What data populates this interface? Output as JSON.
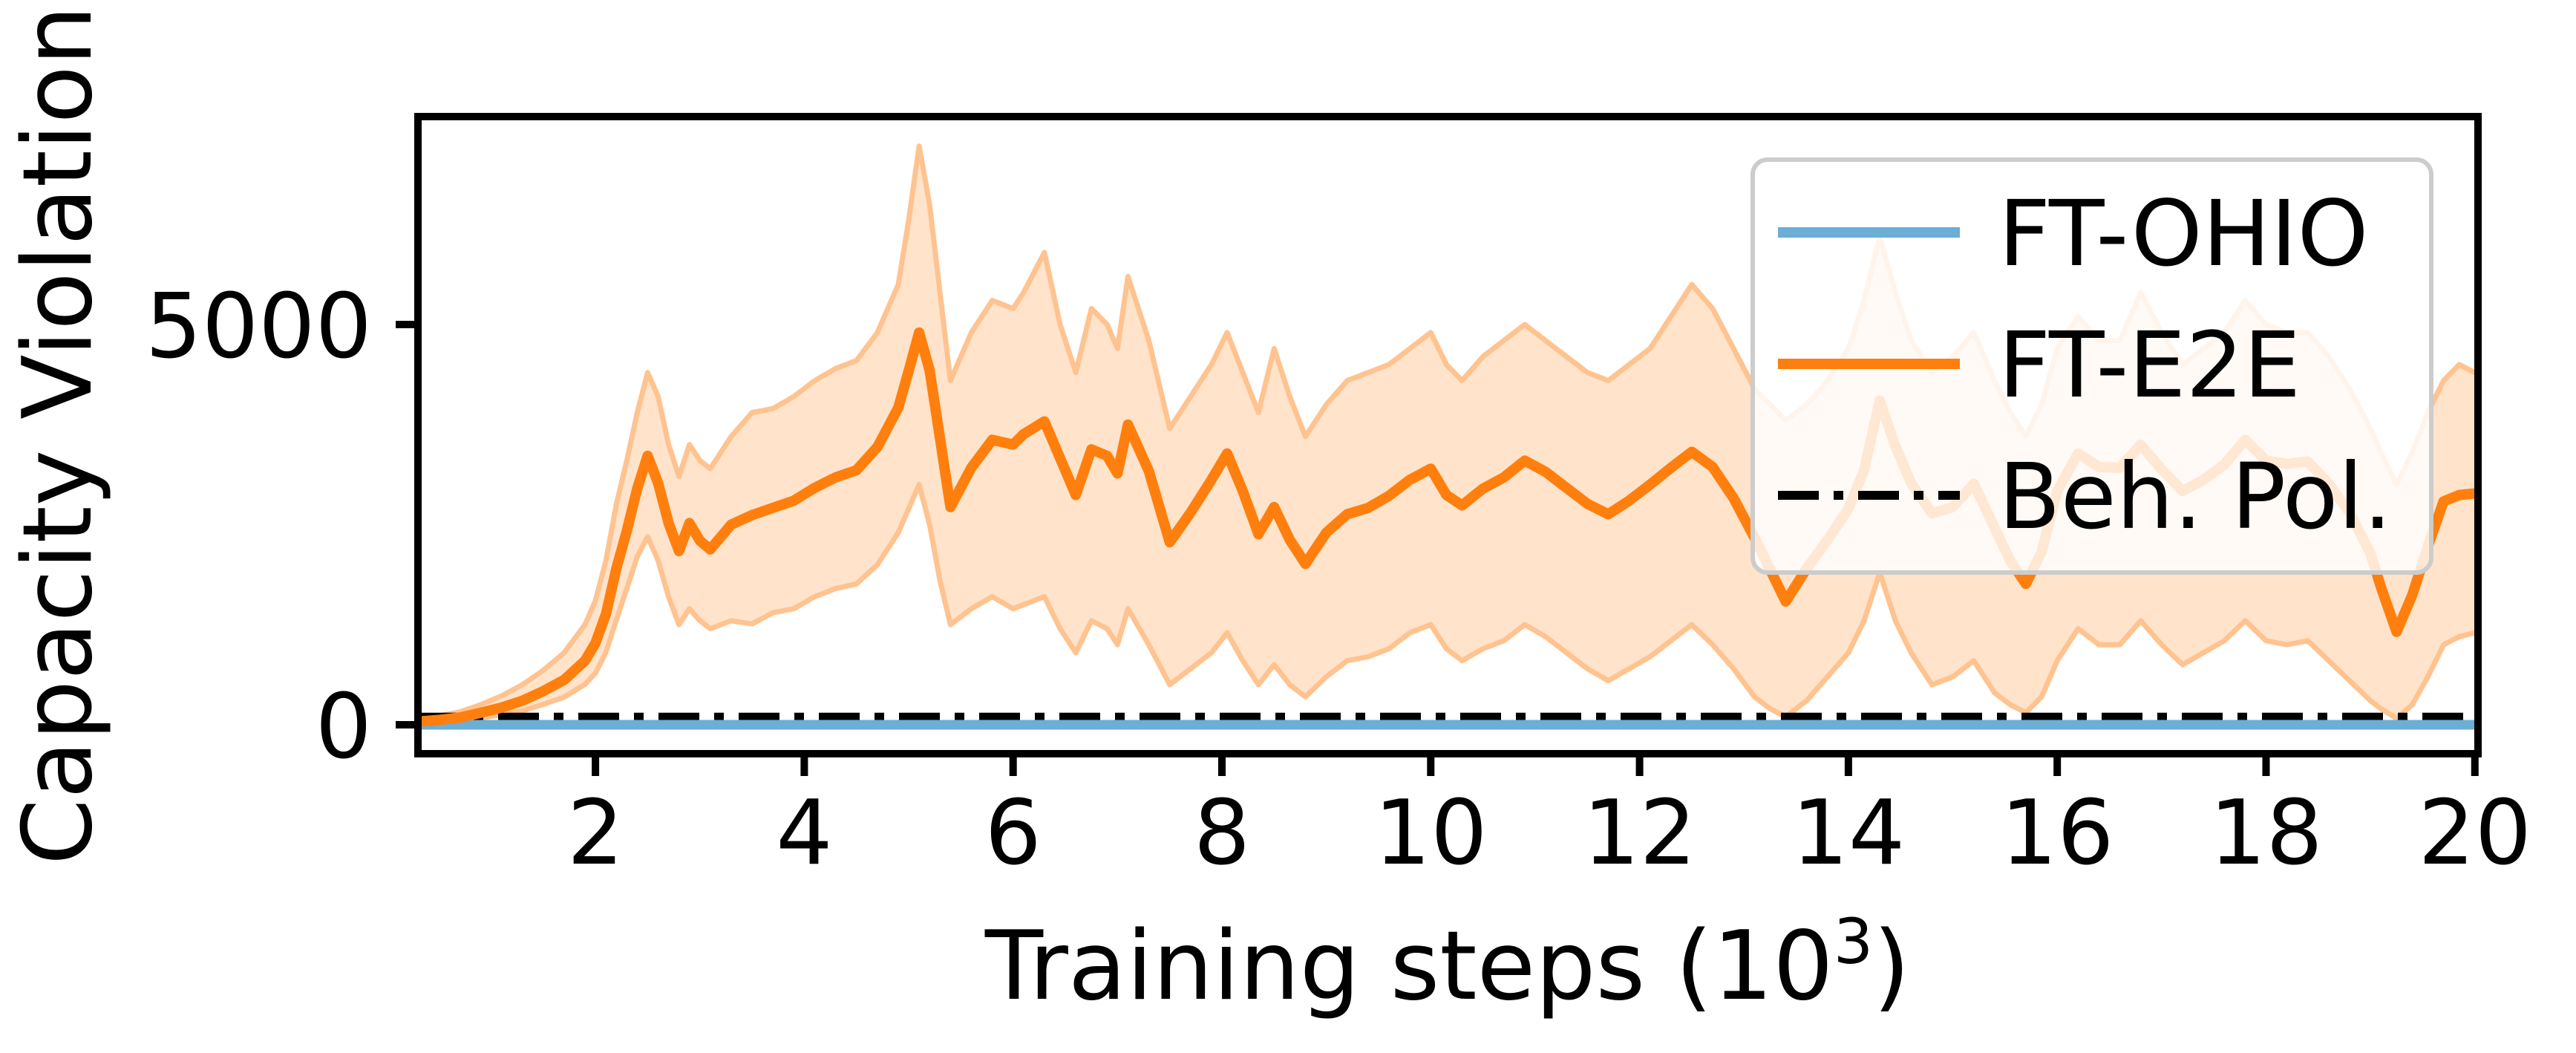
{
  "figure": {
    "background": "#ffffff"
  },
  "colors": {
    "ft_ohio": "#6BAED6",
    "ft_e2e": "#FF7F0E",
    "beh_pol": "#000000",
    "band_fill": "#FF7F0E",
    "band_edge": "#FFC390",
    "legend_border": "#CCCCCC",
    "spine": "#000000"
  },
  "chart_data": {
    "type": "line",
    "title": "",
    "ylabel": "Capacity Violation",
    "xlabel": {
      "prefix": "Training steps (10",
      "sup": "3",
      "suffix": ")"
    },
    "xlim": [
      0.3,
      20.03
    ],
    "ylim": [
      -362,
      7598
    ],
    "x_ticks": [
      2,
      4,
      6,
      8,
      10,
      12,
      14,
      16,
      18,
      20
    ],
    "y_ticks": [
      0,
      5000
    ],
    "grid": false,
    "legend_position": "upper right",
    "x": [
      0.3,
      0.5,
      0.7,
      0.9,
      1.1,
      1.3,
      1.5,
      1.7,
      1.9,
      2.0,
      2.1,
      2.2,
      2.3,
      2.4,
      2.5,
      2.6,
      2.7,
      2.8,
      2.9,
      3.0,
      3.1,
      3.3,
      3.5,
      3.7,
      3.9,
      4.1,
      4.3,
      4.5,
      4.7,
      4.9,
      5.0,
      5.1,
      5.2,
      5.3,
      5.4,
      5.6,
      5.8,
      6.0,
      6.1,
      6.3,
      6.45,
      6.6,
      6.75,
      6.9,
      7.0,
      7.1,
      7.3,
      7.5,
      7.7,
      7.9,
      8.05,
      8.2,
      8.35,
      8.5,
      8.65,
      8.8,
      9.0,
      9.2,
      9.4,
      9.6,
      9.8,
      10.0,
      10.15,
      10.3,
      10.5,
      10.7,
      10.9,
      11.1,
      11.3,
      11.5,
      11.7,
      11.9,
      12.1,
      12.3,
      12.5,
      12.7,
      12.9,
      13.1,
      13.25,
      13.4,
      13.6,
      13.8,
      14.0,
      14.15,
      14.3,
      14.45,
      14.6,
      14.8,
      15.0,
      15.2,
      15.4,
      15.55,
      15.7,
      15.85,
      16.0,
      16.2,
      16.4,
      16.6,
      16.8,
      17.0,
      17.2,
      17.4,
      17.6,
      17.8,
      18.0,
      18.2,
      18.4,
      18.6,
      18.8,
      19.0,
      19.1,
      19.25,
      19.4,
      19.55,
      19.7,
      19.85,
      20.0
    ],
    "series": [
      {
        "name": "FT-OHIO",
        "color": "#6BAED6",
        "style": "solid",
        "constant_value": 0
      },
      {
        "name": "FT-E2E",
        "color": "#FF7F0E",
        "style": "solid",
        "band_alpha": 0.22,
        "mean": [
          40,
          60,
          90,
          150,
          215,
          300,
          420,
          560,
          800,
          1020,
          1380,
          1950,
          2420,
          2950,
          3360,
          3020,
          2520,
          2170,
          2520,
          2300,
          2190,
          2500,
          2620,
          2710,
          2800,
          2960,
          3090,
          3180,
          3470,
          3960,
          4420,
          4900,
          4430,
          3580,
          2720,
          3210,
          3560,
          3500,
          3630,
          3790,
          3330,
          2870,
          3440,
          3360,
          3140,
          3750,
          3170,
          2280,
          2650,
          3060,
          3390,
          2920,
          2380,
          2720,
          2310,
          2010,
          2400,
          2630,
          2710,
          2860,
          3060,
          3200,
          2870,
          2740,
          2950,
          3090,
          3300,
          3160,
          2960,
          2760,
          2630,
          2800,
          3000,
          3210,
          3410,
          3220,
          2830,
          2340,
          1940,
          1540,
          1950,
          2310,
          2700,
          3180,
          4050,
          3480,
          3020,
          2640,
          2720,
          3010,
          2460,
          2050,
          1760,
          2160,
          2920,
          3390,
          3220,
          3210,
          3500,
          3190,
          2920,
          3060,
          3250,
          3560,
          3300,
          3260,
          3290,
          3010,
          2650,
          2140,
          1720,
          1160,
          1620,
          2230,
          2790,
          2870,
          2890
        ],
        "band_lower": [
          10,
          25,
          45,
          85,
          125,
          175,
          255,
          345,
          505,
          645,
          905,
          1310,
          1700,
          2100,
          2350,
          2050,
          1600,
          1250,
          1450,
          1300,
          1200,
          1300,
          1260,
          1400,
          1450,
          1600,
          1700,
          1760,
          2000,
          2400,
          2700,
          3000,
          2500,
          1800,
          1250,
          1450,
          1600,
          1450,
          1500,
          1600,
          1200,
          900,
          1300,
          1200,
          1000,
          1450,
          1000,
          500,
          700,
          900,
          1150,
          800,
          500,
          750,
          500,
          350,
          600,
          800,
          850,
          950,
          1150,
          1250,
          950,
          800,
          950,
          1050,
          1250,
          1100,
          900,
          700,
          550,
          700,
          850,
          1050,
          1250,
          1000,
          700,
          350,
          200,
          100,
          300,
          600,
          900,
          1300,
          1900,
          1300,
          900,
          500,
          600,
          800,
          400,
          250,
          150,
          350,
          800,
          1200,
          1000,
          1000,
          1300,
          1000,
          750,
          900,
          1050,
          1300,
          1050,
          1000,
          1050,
          800,
          550,
          300,
          200,
          80,
          250,
          600,
          1000,
          1100,
          1150
        ],
        "band_upper": [
          80,
          110,
          160,
          250,
          360,
          500,
          680,
          900,
          1250,
          1550,
          2050,
          2750,
          3300,
          3900,
          4400,
          4100,
          3500,
          3100,
          3500,
          3300,
          3200,
          3600,
          3900,
          3950,
          4100,
          4300,
          4450,
          4550,
          4900,
          5500,
          6300,
          7230,
          6500,
          5400,
          4300,
          4900,
          5300,
          5200,
          5400,
          5900,
          5000,
          4400,
          5200,
          5000,
          4700,
          5600,
          4800,
          3700,
          4100,
          4500,
          4900,
          4400,
          3900,
          4700,
          4100,
          3600,
          4000,
          4300,
          4400,
          4500,
          4700,
          4900,
          4500,
          4300,
          4600,
          4800,
          5000,
          4800,
          4600,
          4400,
          4300,
          4500,
          4700,
          5100,
          5500,
          5200,
          4700,
          4200,
          4000,
          3800,
          4000,
          4300,
          4700,
          5300,
          6100,
          5400,
          4800,
          4400,
          4600,
          4900,
          4300,
          3900,
          3600,
          4000,
          4700,
          5100,
          4800,
          4800,
          5400,
          4900,
          4500,
          4700,
          4900,
          5300,
          5000,
          4900,
          4900,
          4600,
          4200,
          3700,
          3400,
          3000,
          3400,
          3900,
          4300,
          4500,
          4400
        ]
      },
      {
        "name": "Beh. Pol.",
        "color": "#000000",
        "style": "dashdot",
        "constant_value": 95
      }
    ]
  }
}
